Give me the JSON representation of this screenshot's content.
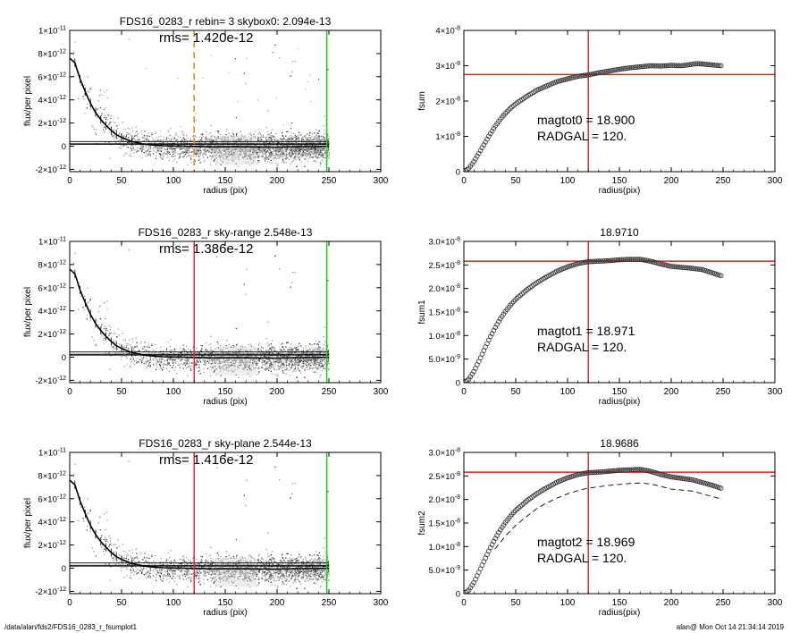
{
  "footer": {
    "left": "/data/alan/fds2/FDS16_0283_r_fsumplot1",
    "right": "alan@  Mon Oct 14 21:34:14 2019"
  },
  "colors": {
    "scatter_light": "#9a9a9a",
    "scatter_dark": "#333333",
    "profile": "#000000",
    "green_line": "#00dd00",
    "red_line": "#dd2222",
    "orange_dashed": "#e08a2a",
    "marker": "#333333"
  },
  "chart_data": [
    {
      "type": "scatter",
      "title": "FDS16_0283_r rebin= 3    skybox0:  2.094e-13",
      "annotation": "rms= 1.420e-12",
      "xlabel": "radius (pix)",
      "ylabel": "flux/per pixel",
      "xlim": [
        0,
        300
      ],
      "ylim": [
        -2.2e-12,
        1e-11
      ],
      "xticks": [
        "0",
        "50",
        "100",
        "150",
        "200",
        "250",
        "300"
      ],
      "yticks": [
        {
          "value": 1e-11,
          "mant": "1×10",
          "exp": "-11"
        },
        {
          "value": 8e-12,
          "mant": "8×10",
          "exp": "-12"
        },
        {
          "value": 6e-12,
          "mant": "6×10",
          "exp": "-12"
        },
        {
          "value": 4e-12,
          "mant": "4×10",
          "exp": "-12"
        },
        {
          "value": 2e-12,
          "mant": "2×10",
          "exp": "-12"
        },
        {
          "value": 0,
          "mant": "0",
          "exp": ""
        },
        {
          "value": -2e-12,
          "mant": "-2×10",
          "exp": "-12"
        }
      ],
      "vlines": [
        {
          "x": 120,
          "color": "orange",
          "style": "dashed"
        },
        {
          "x": 248,
          "color": "green",
          "style": "solid"
        }
      ],
      "hlines": [
        2.094e-13,
        1.6e-13,
        4e-13
      ],
      "profile": {
        "x": [
          0,
          5,
          10,
          15,
          20,
          25,
          30,
          35,
          40,
          45,
          50,
          60,
          70,
          80,
          90,
          100,
          110,
          120,
          140,
          160,
          180,
          200,
          220,
          240,
          250
        ],
        "y": [
          7.6e-12,
          7.2e-12,
          5.8e-12,
          4.7e-12,
          3.7e-12,
          2.9e-12,
          2.3e-12,
          1.8e-12,
          1.35e-12,
          1e-12,
          7.5e-13,
          4e-13,
          2e-13,
          1e-13,
          4e-14,
          2e-14,
          0,
          -2e-14,
          -6e-14,
          -4e-14,
          -6e-14,
          -8e-14,
          -4e-14,
          -3e-14,
          0
        ]
      }
    },
    {
      "type": "line",
      "title": "",
      "xlabel": "radius(pix)",
      "ylabel": "fsum",
      "xlim": [
        0,
        300
      ],
      "ylim": [
        0,
        4e-08
      ],
      "xticks": [
        "0",
        "50",
        "100",
        "150",
        "200",
        "250",
        "300"
      ],
      "yticks": [
        {
          "value": 4e-08,
          "mant": "4×10",
          "exp": "-8"
        },
        {
          "value": 3e-08,
          "mant": "3×10",
          "exp": "-8"
        },
        {
          "value": 2e-08,
          "mant": "2×10",
          "exp": "-8"
        },
        {
          "value": 1e-08,
          "mant": "1×10",
          "exp": "-8"
        },
        {
          "value": 0,
          "mant": "0",
          "exp": ""
        }
      ],
      "annotations": [
        "magtot0 =  18.900",
        "RADGAL =    120."
      ],
      "crosshair": {
        "x": 120,
        "y": 2.75e-08
      },
      "curve": {
        "x": [
          0,
          5,
          10,
          15,
          20,
          25,
          30,
          35,
          40,
          45,
          50,
          60,
          70,
          80,
          90,
          100,
          110,
          120,
          130,
          140,
          150,
          160,
          170,
          180,
          190,
          200,
          210,
          220,
          225,
          230,
          240,
          248
        ],
        "y": [
          0,
          1e-09,
          3e-09,
          5.5e-09,
          8e-09,
          1.05e-08,
          1.28e-08,
          1.48e-08,
          1.65e-08,
          1.8e-08,
          1.92e-08,
          2.12e-08,
          2.3e-08,
          2.43e-08,
          2.55e-08,
          2.63e-08,
          2.7e-08,
          2.74e-08,
          2.8e-08,
          2.85e-08,
          2.9e-08,
          2.94e-08,
          2.97e-08,
          3e-08,
          2.99e-08,
          3.01e-08,
          3e-08,
          3.04e-08,
          3.06e-08,
          3.05e-08,
          3.02e-08,
          3e-08
        ]
      },
      "dashed_curve": null
    },
    {
      "type": "scatter",
      "title": "FDS16_0283_r sky-range  2.548e-13",
      "annotation": "rms= 1.386e-12",
      "xlabel": "radius (pix)",
      "ylabel": "flux/per pixel",
      "xlim": [
        0,
        300
      ],
      "ylim": [
        -2.2e-12,
        1e-11
      ],
      "xticks": [
        "0",
        "50",
        "100",
        "150",
        "200",
        "250",
        "300"
      ],
      "yticks": [
        {
          "value": 1e-11,
          "mant": "1×10",
          "exp": "-11"
        },
        {
          "value": 8e-12,
          "mant": "8×10",
          "exp": "-12"
        },
        {
          "value": 6e-12,
          "mant": "6×10",
          "exp": "-12"
        },
        {
          "value": 4e-12,
          "mant": "4×10",
          "exp": "-12"
        },
        {
          "value": 2e-12,
          "mant": "2×10",
          "exp": "-12"
        },
        {
          "value": 0,
          "mant": "0",
          "exp": ""
        },
        {
          "value": -2e-12,
          "mant": "-2×10",
          "exp": "-12"
        }
      ],
      "vlines": [
        {
          "x": 120,
          "color": "red",
          "style": "solid"
        },
        {
          "x": 248,
          "color": "green",
          "style": "solid"
        }
      ],
      "hlines": [
        2.548e-13,
        1.8e-13,
        4.5e-13
      ],
      "profile": {
        "x": [
          0,
          5,
          10,
          15,
          20,
          25,
          30,
          35,
          40,
          45,
          50,
          60,
          70,
          80,
          90,
          100,
          110,
          120,
          140,
          160,
          180,
          200,
          220,
          240,
          250
        ],
        "y": [
          7.6e-12,
          7.2e-12,
          5.8e-12,
          4.7e-12,
          3.7e-12,
          2.9e-12,
          2.3e-12,
          1.8e-12,
          1.35e-12,
          1e-12,
          7.5e-13,
          4e-13,
          2e-13,
          1e-13,
          4e-14,
          2e-14,
          0,
          -2e-14,
          -6e-14,
          -4e-14,
          -6e-14,
          -8e-14,
          -4e-14,
          -3e-14,
          0
        ]
      }
    },
    {
      "type": "line",
      "title": "18.9710",
      "xlabel": "radius(pix)",
      "ylabel": "fsum1",
      "xlim": [
        0,
        300
      ],
      "ylim": [
        0,
        3e-08
      ],
      "xticks": [
        "0",
        "50",
        "100",
        "150",
        "200",
        "250",
        "300"
      ],
      "yticks": [
        {
          "value": 3e-08,
          "mant": "3.0×10",
          "exp": "-8"
        },
        {
          "value": 2.5e-08,
          "mant": "2.5×10",
          "exp": "-8"
        },
        {
          "value": 2e-08,
          "mant": "2.0×10",
          "exp": "-8"
        },
        {
          "value": 1.5e-08,
          "mant": "1.5×10",
          "exp": "-8"
        },
        {
          "value": 1e-08,
          "mant": "1.0×10",
          "exp": "-8"
        },
        {
          "value": 5e-09,
          "mant": "5.0×10",
          "exp": "-9"
        },
        {
          "value": 0,
          "mant": "0",
          "exp": ""
        }
      ],
      "annotations": [
        "magtot1 =  18.971",
        "RADGAL =    120."
      ],
      "crosshair": {
        "x": 120,
        "y": 2.58e-08
      },
      "curve": {
        "x": [
          0,
          5,
          10,
          15,
          20,
          25,
          30,
          35,
          40,
          45,
          50,
          60,
          70,
          80,
          90,
          100,
          110,
          120,
          130,
          140,
          150,
          160,
          170,
          180,
          190,
          200,
          210,
          220,
          230,
          240,
          248
        ],
        "y": [
          0,
          8e-10,
          2.5e-09,
          4.8e-09,
          7.2e-09,
          9.5e-09,
          1.16e-08,
          1.35e-08,
          1.51e-08,
          1.65e-08,
          1.77e-08,
          1.96e-08,
          2.12e-08,
          2.25e-08,
          2.37e-08,
          2.46e-08,
          2.53e-08,
          2.57e-08,
          2.58e-08,
          2.59e-08,
          2.61e-08,
          2.62e-08,
          2.62e-08,
          2.58e-08,
          2.52e-08,
          2.47e-08,
          2.45e-08,
          2.43e-08,
          2.4e-08,
          2.33e-08,
          2.27e-08
        ]
      },
      "dashed_curve": null
    },
    {
      "type": "scatter",
      "title": "FDS16_0283_r sky-plane  2.544e-13",
      "annotation": "rms= 1.416e-12",
      "xlabel": "radius (pix)",
      "ylabel": "flux/per pixel",
      "xlim": [
        0,
        300
      ],
      "ylim": [
        -2.2e-12,
        1e-11
      ],
      "xticks": [
        "0",
        "50",
        "100",
        "150",
        "200",
        "250",
        "300"
      ],
      "yticks": [
        {
          "value": 1e-11,
          "mant": "1×10",
          "exp": "-11"
        },
        {
          "value": 8e-12,
          "mant": "8×10",
          "exp": "-12"
        },
        {
          "value": 6e-12,
          "mant": "6×10",
          "exp": "-12"
        },
        {
          "value": 4e-12,
          "mant": "4×10",
          "exp": "-12"
        },
        {
          "value": 2e-12,
          "mant": "2×10",
          "exp": "-12"
        },
        {
          "value": 0,
          "mant": "0",
          "exp": ""
        },
        {
          "value": -2e-12,
          "mant": "-2×10",
          "exp": "-12"
        }
      ],
      "vlines": [
        {
          "x": 120,
          "color": "red",
          "style": "solid"
        },
        {
          "x": 248,
          "color": "green",
          "style": "solid"
        }
      ],
      "hlines": [
        2.544e-13,
        1.8e-13,
        4.5e-13
      ],
      "profile": {
        "x": [
          0,
          5,
          10,
          15,
          20,
          25,
          30,
          35,
          40,
          45,
          50,
          60,
          70,
          80,
          90,
          100,
          110,
          120,
          140,
          160,
          180,
          200,
          220,
          240,
          250
        ],
        "y": [
          7.6e-12,
          7.2e-12,
          5.8e-12,
          4.7e-12,
          3.7e-12,
          2.9e-12,
          2.3e-12,
          1.8e-12,
          1.35e-12,
          1e-12,
          7.5e-13,
          4e-13,
          2e-13,
          1e-13,
          4e-14,
          2e-14,
          0,
          -2e-14,
          -6e-14,
          -4e-14,
          -6e-14,
          -8e-14,
          -4e-14,
          -3e-14,
          0
        ]
      }
    },
    {
      "type": "line",
      "title": "18.9686",
      "xlabel": "radius(pix)",
      "ylabel": "fsum2",
      "xlim": [
        0,
        300
      ],
      "ylim": [
        0,
        3e-08
      ],
      "xticks": [
        "0",
        "50",
        "100",
        "150",
        "200",
        "250",
        "300"
      ],
      "yticks": [
        {
          "value": 3e-08,
          "mant": "3.0×10",
          "exp": "-8"
        },
        {
          "value": 2.5e-08,
          "mant": "2.5×10",
          "exp": "-8"
        },
        {
          "value": 2e-08,
          "mant": "2.0×10",
          "exp": "-8"
        },
        {
          "value": 1.5e-08,
          "mant": "1.5×10",
          "exp": "-8"
        },
        {
          "value": 1e-08,
          "mant": "1.0×10",
          "exp": "-8"
        },
        {
          "value": 5e-09,
          "mant": "5.0×10",
          "exp": "-9"
        },
        {
          "value": 0,
          "mant": "0",
          "exp": ""
        }
      ],
      "annotations": [
        "magtot2 =  18.969",
        "RADGAL =    120."
      ],
      "crosshair": {
        "x": 120,
        "y": 2.58e-08
      },
      "curve": {
        "x": [
          0,
          5,
          10,
          15,
          20,
          25,
          30,
          35,
          40,
          45,
          50,
          60,
          70,
          80,
          90,
          100,
          110,
          120,
          130,
          140,
          150,
          160,
          170,
          180,
          190,
          200,
          210,
          220,
          230,
          240,
          248
        ],
        "y": [
          0,
          8e-10,
          2.5e-09,
          4.8e-09,
          7.2e-09,
          9.5e-09,
          1.16e-08,
          1.35e-08,
          1.51e-08,
          1.65e-08,
          1.77e-08,
          1.96e-08,
          2.12e-08,
          2.25e-08,
          2.37e-08,
          2.46e-08,
          2.53e-08,
          2.57e-08,
          2.58e-08,
          2.6e-08,
          2.62e-08,
          2.63e-08,
          2.64e-08,
          2.6e-08,
          2.53e-08,
          2.48e-08,
          2.45e-08,
          2.42e-08,
          2.36e-08,
          2.3e-08,
          2.24e-08
        ]
      },
      "dashed_curve": {
        "x": [
          30,
          40,
          50,
          60,
          70,
          80,
          90,
          100,
          110,
          120,
          130,
          140,
          150,
          160,
          170,
          180,
          190,
          200,
          210,
          220,
          230,
          240,
          248
        ],
        "y": [
          9.5e-09,
          1.22e-08,
          1.45e-08,
          1.63e-08,
          1.8e-08,
          1.93e-08,
          2.03e-08,
          2.12e-08,
          2.19e-08,
          2.24e-08,
          2.27e-08,
          2.3e-08,
          2.32e-08,
          2.34e-08,
          2.35e-08,
          2.33e-08,
          2.28e-08,
          2.22e-08,
          2.2e-08,
          2.18e-08,
          2.12e-08,
          2.06e-08,
          2.01e-08
        ]
      }
    }
  ]
}
